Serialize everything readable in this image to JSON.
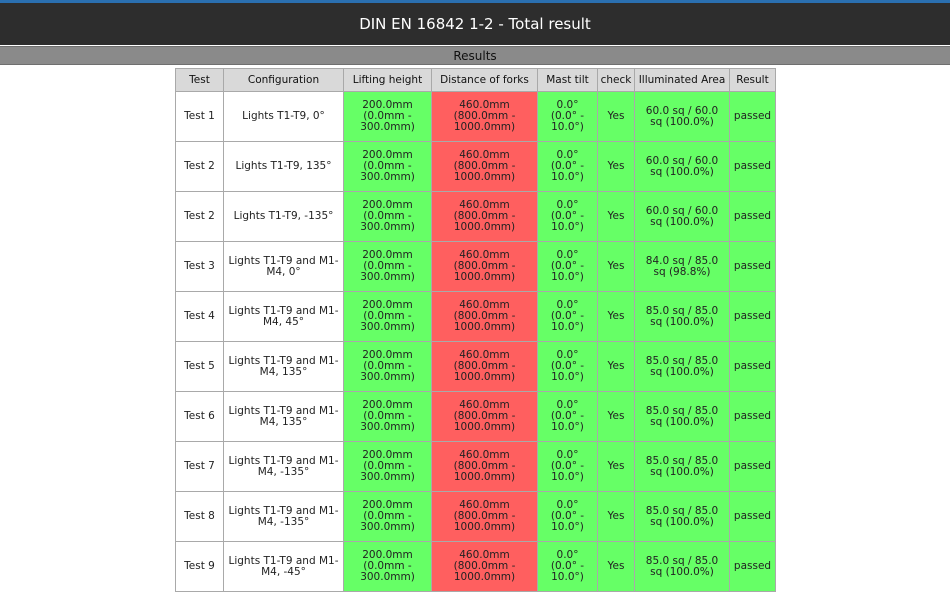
{
  "header": {
    "title": "DIN EN 16842 1-2 - Total result"
  },
  "section": {
    "title": "Results"
  },
  "table": {
    "columns": [
      "Test",
      "Configuration",
      "Lifting height",
      "Distance of forks",
      "Mast tilt",
      "check",
      "Illuminated Area",
      "Result"
    ],
    "rows": [
      {
        "test": "Test 1",
        "config": "Lights T1-T9, 0°",
        "lift": "200.0mm\n(0.0mm -\n300.0mm)",
        "fork": "460.0mm\n(800.0mm -\n1000.0mm)",
        "mast": "0.0°\n(0.0° -\n10.0°)",
        "check": "Yes",
        "area": "60.0 sq / 60.0\nsq (100.0%)",
        "result": "passed"
      },
      {
        "test": "Test 2",
        "config": "Lights T1-T9, 135°",
        "lift": "200.0mm\n(0.0mm -\n300.0mm)",
        "fork": "460.0mm\n(800.0mm -\n1000.0mm)",
        "mast": "0.0°\n(0.0° -\n10.0°)",
        "check": "Yes",
        "area": "60.0 sq / 60.0\nsq (100.0%)",
        "result": "passed"
      },
      {
        "test": "Test 2",
        "config": "Lights T1-T9, -135°",
        "lift": "200.0mm\n(0.0mm -\n300.0mm)",
        "fork": "460.0mm\n(800.0mm -\n1000.0mm)",
        "mast": "0.0°\n(0.0° -\n10.0°)",
        "check": "Yes",
        "area": "60.0 sq / 60.0\nsq (100.0%)",
        "result": "passed"
      },
      {
        "test": "Test 3",
        "config": "Lights T1-T9 and M1-\nM4, 0°",
        "lift": "200.0mm\n(0.0mm -\n300.0mm)",
        "fork": "460.0mm\n(800.0mm -\n1000.0mm)",
        "mast": "0.0°\n(0.0° -\n10.0°)",
        "check": "Yes",
        "area": "84.0 sq / 85.0\nsq (98.8%)",
        "result": "passed"
      },
      {
        "test": "Test 4",
        "config": "Lights T1-T9 and M1-\nM4, 45°",
        "lift": "200.0mm\n(0.0mm -\n300.0mm)",
        "fork": "460.0mm\n(800.0mm -\n1000.0mm)",
        "mast": "0.0°\n(0.0° -\n10.0°)",
        "check": "Yes",
        "area": "85.0 sq / 85.0\nsq (100.0%)",
        "result": "passed"
      },
      {
        "test": "Test 5",
        "config": "Lights T1-T9 and M1-\nM4, 135°",
        "lift": "200.0mm\n(0.0mm -\n300.0mm)",
        "fork": "460.0mm\n(800.0mm -\n1000.0mm)",
        "mast": "0.0°\n(0.0° -\n10.0°)",
        "check": "Yes",
        "area": "85.0 sq / 85.0\nsq (100.0%)",
        "result": "passed"
      },
      {
        "test": "Test 6",
        "config": "Lights T1-T9 and M1-\nM4, 135°",
        "lift": "200.0mm\n(0.0mm -\n300.0mm)",
        "fork": "460.0mm\n(800.0mm -\n1000.0mm)",
        "mast": "0.0°\n(0.0° -\n10.0°)",
        "check": "Yes",
        "area": "85.0 sq / 85.0\nsq (100.0%)",
        "result": "passed"
      },
      {
        "test": "Test 7",
        "config": "Lights T1-T9 and M1-\nM4, -135°",
        "lift": "200.0mm\n(0.0mm -\n300.0mm)",
        "fork": "460.0mm\n(800.0mm -\n1000.0mm)",
        "mast": "0.0°\n(0.0° -\n10.0°)",
        "check": "Yes",
        "area": "85.0 sq / 85.0\nsq (100.0%)",
        "result": "passed"
      },
      {
        "test": "Test 8",
        "config": "Lights T1-T9 and M1-\nM4, -135°",
        "lift": "200.0mm\n(0.0mm -\n300.0mm)",
        "fork": "460.0mm\n(800.0mm -\n1000.0mm)",
        "mast": "0.0°\n(0.0° -\n10.0°)",
        "check": "Yes",
        "area": "85.0 sq / 85.0\nsq (100.0%)",
        "result": "passed"
      },
      {
        "test": "Test 9",
        "config": "Lights T1-T9 and M1-\nM4, -45°",
        "lift": "200.0mm\n(0.0mm -\n300.0mm)",
        "fork": "460.0mm\n(800.0mm -\n1000.0mm)",
        "mast": "0.0°\n(0.0° -\n10.0°)",
        "check": "Yes",
        "area": "85.0 sq / 85.0\nsq (100.0%)",
        "result": "passed"
      }
    ]
  },
  "colors": {
    "pass": "#66ff66",
    "fail": "#ff5f5f",
    "header_bg": "#2d2d2d",
    "subheader_bg": "#8a8a8a"
  }
}
